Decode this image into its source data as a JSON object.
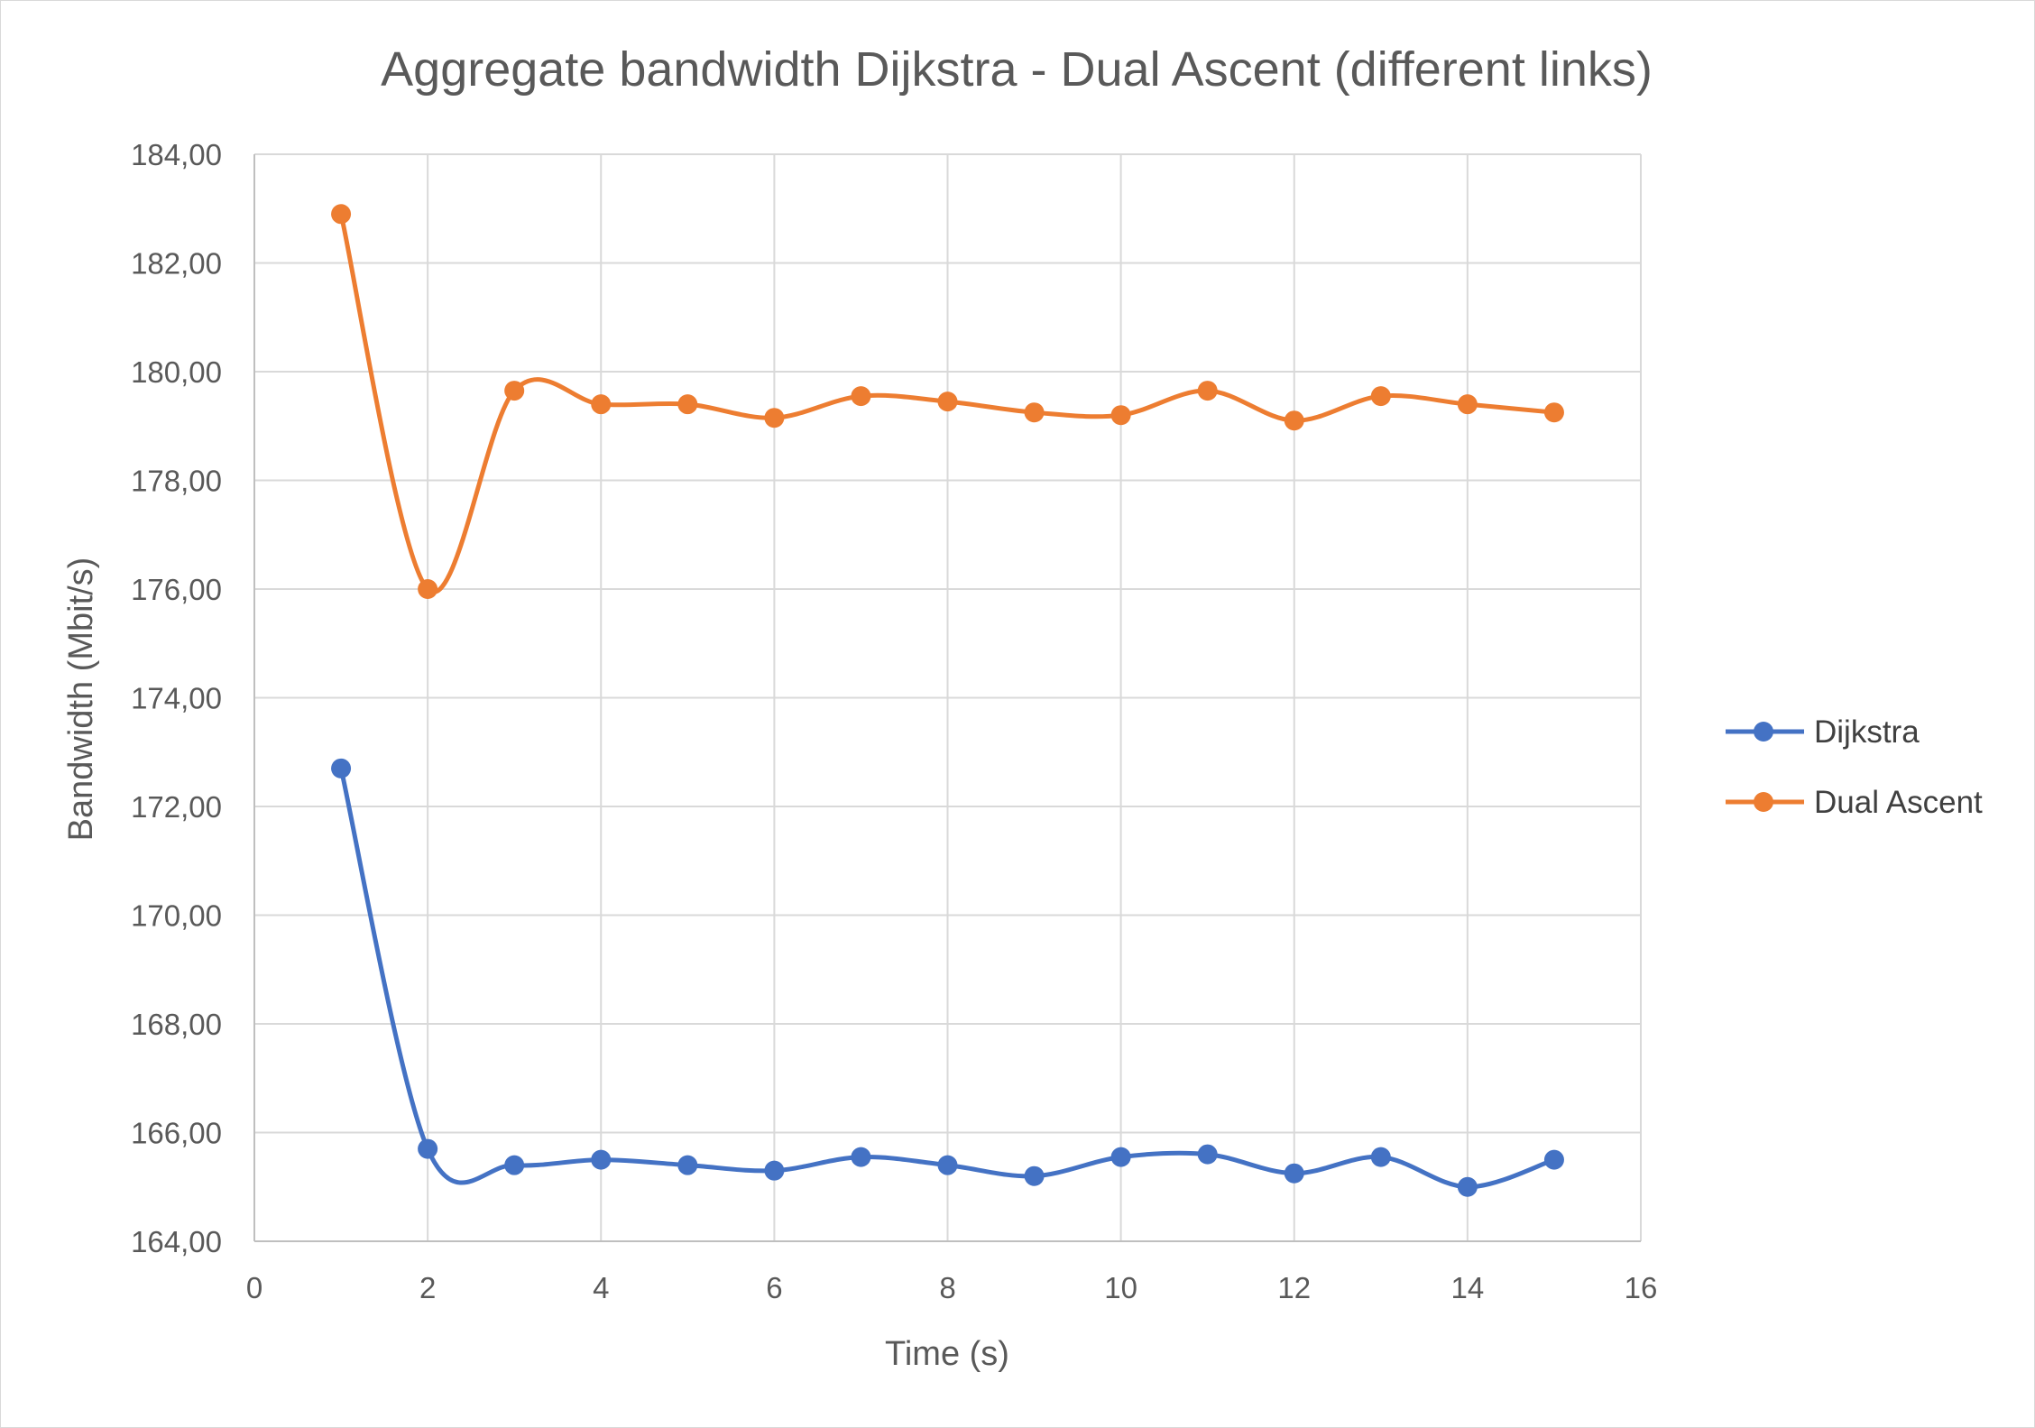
{
  "chart_data": {
    "type": "line",
    "title": "Aggregate bandwidth Dijkstra - Dual Ascent (different links)",
    "xlabel": "Time (s)",
    "ylabel": "Bandwidth (Mbit/s)",
    "xlim": [
      0,
      16
    ],
    "ylim": [
      164,
      184
    ],
    "x_ticks": [
      "0",
      "2",
      "4",
      "6",
      "8",
      "10",
      "12",
      "14",
      "16"
    ],
    "y_ticks": [
      "164,00",
      "166,00",
      "168,00",
      "170,00",
      "172,00",
      "174,00",
      "176,00",
      "178,00",
      "180,00",
      "182,00",
      "184,00"
    ],
    "grid": true,
    "smooth": true,
    "legend_position": "right",
    "x": [
      1,
      2,
      3,
      4,
      5,
      6,
      7,
      8,
      9,
      10,
      11,
      12,
      13,
      14,
      15
    ],
    "series": [
      {
        "name": "Dijkstra",
        "color": "#4472c4",
        "values": [
          172.7,
          165.7,
          165.4,
          165.5,
          165.4,
          165.3,
          165.55,
          165.4,
          165.2,
          165.55,
          165.6,
          165.25,
          165.55,
          165.0,
          165.5
        ]
      },
      {
        "name": "Dual Ascent",
        "color": "#ed7d31",
        "values": [
          182.9,
          176.0,
          179.65,
          179.4,
          179.4,
          179.15,
          179.55,
          179.45,
          179.25,
          179.2,
          179.65,
          179.1,
          179.55,
          179.4,
          179.25
        ]
      }
    ]
  }
}
